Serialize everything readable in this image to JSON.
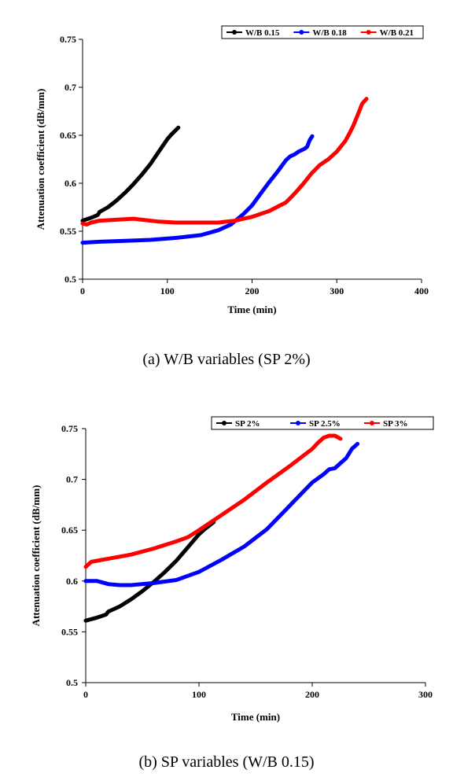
{
  "chart_data": [
    {
      "type": "line",
      "title": "",
      "caption": "(a) W/B variables (SP 2%)",
      "xlabel": "Time (min)",
      "ylabel": "Attenuation coefficient (dB/mm)",
      "xlim": [
        0,
        400
      ],
      "ylim": [
        0.5,
        0.75
      ],
      "xticks": [
        0,
        100,
        200,
        300,
        400
      ],
      "yticks": [
        0.5,
        0.55,
        0.6,
        0.65,
        0.7,
        0.75
      ],
      "ytick_labels": [
        "0.5",
        "0.55",
        "0.6",
        "0.65",
        "0.7",
        "0.75"
      ],
      "legend_position": "top-right",
      "grid": false,
      "series": [
        {
          "name": "W/B 0.15",
          "color": "#000000",
          "x": [
            0,
            10,
            18,
            20,
            30,
            40,
            50,
            60,
            70,
            80,
            90,
            100,
            105,
            113
          ],
          "y": [
            0.561,
            0.564,
            0.567,
            0.57,
            0.575,
            0.582,
            0.59,
            0.599,
            0.609,
            0.62,
            0.633,
            0.646,
            0.651,
            0.658
          ]
        },
        {
          "name": "W/B 0.18",
          "color": "#0000ff",
          "x": [
            0,
            20,
            50,
            80,
            110,
            140,
            160,
            175,
            190,
            200,
            210,
            220,
            230,
            240,
            245,
            250,
            255,
            262,
            265,
            268,
            271
          ],
          "y": [
            0.538,
            0.539,
            0.54,
            0.541,
            0.543,
            0.546,
            0.551,
            0.557,
            0.568,
            0.577,
            0.589,
            0.601,
            0.612,
            0.624,
            0.628,
            0.63,
            0.633,
            0.636,
            0.638,
            0.645,
            0.649
          ]
        },
        {
          "name": "W/B 0.21",
          "color": "#ff0000",
          "x": [
            0,
            5,
            10,
            20,
            40,
            60,
            70,
            90,
            110,
            130,
            160,
            180,
            200,
            220,
            240,
            250,
            260,
            270,
            280,
            290,
            300,
            310,
            315,
            320,
            325,
            330,
            335
          ],
          "y": [
            0.558,
            0.557,
            0.559,
            0.561,
            0.562,
            0.563,
            0.562,
            0.56,
            0.559,
            0.559,
            0.559,
            0.561,
            0.565,
            0.571,
            0.58,
            0.589,
            0.599,
            0.61,
            0.619,
            0.625,
            0.633,
            0.644,
            0.652,
            0.661,
            0.672,
            0.683,
            0.688
          ]
        }
      ]
    },
    {
      "type": "line",
      "title": "",
      "caption": "(b) SP variables (W/B 0.15)",
      "xlabel": "Time (min)",
      "ylabel": "Attenuation coefficient (dB/mm)",
      "xlim": [
        0,
        300
      ],
      "ylim": [
        0.5,
        0.75
      ],
      "xticks": [
        0,
        100,
        200,
        300
      ],
      "yticks": [
        0.5,
        0.55,
        0.6,
        0.65,
        0.7,
        0.75
      ],
      "ytick_labels": [
        "0.5",
        "0.55",
        "0.6",
        "0.65",
        "0.7",
        "0.75"
      ],
      "legend_position": "top-right",
      "grid": false,
      "series": [
        {
          "name": "SP 2%",
          "color": "#000000",
          "x": [
            0,
            10,
            18,
            20,
            30,
            40,
            50,
            60,
            70,
            80,
            90,
            100,
            105,
            113
          ],
          "y": [
            0.561,
            0.564,
            0.567,
            0.57,
            0.575,
            0.582,
            0.59,
            0.599,
            0.609,
            0.62,
            0.633,
            0.646,
            0.651,
            0.658
          ]
        },
        {
          "name": "SP 2.5%",
          "color": "#0000ff",
          "x": [
            0,
            10,
            20,
            30,
            40,
            60,
            80,
            100,
            120,
            140,
            160,
            180,
            200,
            210,
            215,
            220,
            225,
            230,
            235,
            240
          ],
          "y": [
            0.6,
            0.6,
            0.597,
            0.596,
            0.596,
            0.598,
            0.601,
            0.609,
            0.621,
            0.634,
            0.651,
            0.674,
            0.697,
            0.705,
            0.71,
            0.711,
            0.716,
            0.721,
            0.73,
            0.735
          ]
        },
        {
          "name": "SP 3%",
          "color": "#ff0000",
          "x": [
            0,
            5,
            10,
            20,
            40,
            60,
            80,
            90,
            100,
            120,
            140,
            160,
            180,
            200,
            205,
            210,
            215,
            220,
            225
          ],
          "y": [
            0.614,
            0.619,
            0.62,
            0.622,
            0.626,
            0.632,
            0.639,
            0.643,
            0.65,
            0.665,
            0.68,
            0.697,
            0.713,
            0.73,
            0.736,
            0.741,
            0.743,
            0.743,
            0.74
          ]
        }
      ]
    }
  ]
}
